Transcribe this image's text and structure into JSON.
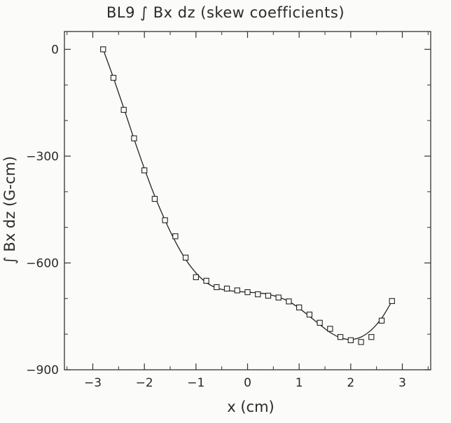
{
  "chart_data": {
    "type": "scatter",
    "title": "BL9 ∫ Bx dz (skew coefficients)",
    "xlabel": "x (cm)",
    "ylabel": "∫ Bx dz (G-cm)",
    "xlim": [
      -3.55,
      3.55
    ],
    "ylim": [
      -900,
      50
    ],
    "xticks": [
      -3,
      -2,
      -1,
      0,
      1,
      2,
      3
    ],
    "yticks": [
      0,
      -300,
      -600,
      -900
    ],
    "grid": false,
    "series": [
      {
        "marker": "square",
        "points": [
          [
            -2.8,
            0
          ],
          [
            -2.6,
            -80
          ],
          [
            -2.4,
            -170
          ],
          [
            -2.2,
            -250
          ],
          [
            -2.0,
            -340
          ],
          [
            -1.8,
            -420
          ],
          [
            -1.6,
            -480
          ],
          [
            -1.4,
            -525
          ],
          [
            -1.2,
            -585
          ],
          [
            -1.0,
            -640
          ],
          [
            -0.8,
            -650
          ],
          [
            -0.6,
            -668
          ],
          [
            -0.4,
            -672
          ],
          [
            -0.2,
            -677
          ],
          [
            0.0,
            -682
          ],
          [
            0.2,
            -688
          ],
          [
            0.4,
            -692
          ],
          [
            0.6,
            -697
          ],
          [
            0.8,
            -708
          ],
          [
            1.0,
            -725
          ],
          [
            1.2,
            -745
          ],
          [
            1.4,
            -768
          ],
          [
            1.6,
            -785
          ],
          [
            1.8,
            -808
          ],
          [
            2.0,
            -817
          ],
          [
            2.2,
            -822
          ],
          [
            2.4,
            -808
          ],
          [
            2.6,
            -762
          ],
          [
            2.8,
            -707
          ]
        ]
      },
      {
        "line": "solid",
        "points": [
          [
            -2.8,
            0
          ],
          [
            -2.6,
            -80
          ],
          [
            -2.4,
            -165
          ],
          [
            -2.2,
            -252
          ],
          [
            -2.0,
            -335
          ],
          [
            -1.8,
            -412
          ],
          [
            -1.6,
            -480
          ],
          [
            -1.4,
            -540
          ],
          [
            -1.2,
            -590
          ],
          [
            -1.0,
            -628
          ],
          [
            -0.8,
            -655
          ],
          [
            -0.6,
            -670
          ],
          [
            -0.4,
            -677
          ],
          [
            -0.2,
            -680
          ],
          [
            0.0,
            -682
          ],
          [
            0.2,
            -684
          ],
          [
            0.4,
            -688
          ],
          [
            0.6,
            -696
          ],
          [
            0.8,
            -708
          ],
          [
            1.0,
            -727
          ],
          [
            1.2,
            -750
          ],
          [
            1.4,
            -773
          ],
          [
            1.6,
            -795
          ],
          [
            1.8,
            -810
          ],
          [
            2.0,
            -815
          ],
          [
            2.2,
            -808
          ],
          [
            2.4,
            -788
          ],
          [
            2.6,
            -755
          ],
          [
            2.8,
            -707
          ]
        ]
      }
    ]
  }
}
